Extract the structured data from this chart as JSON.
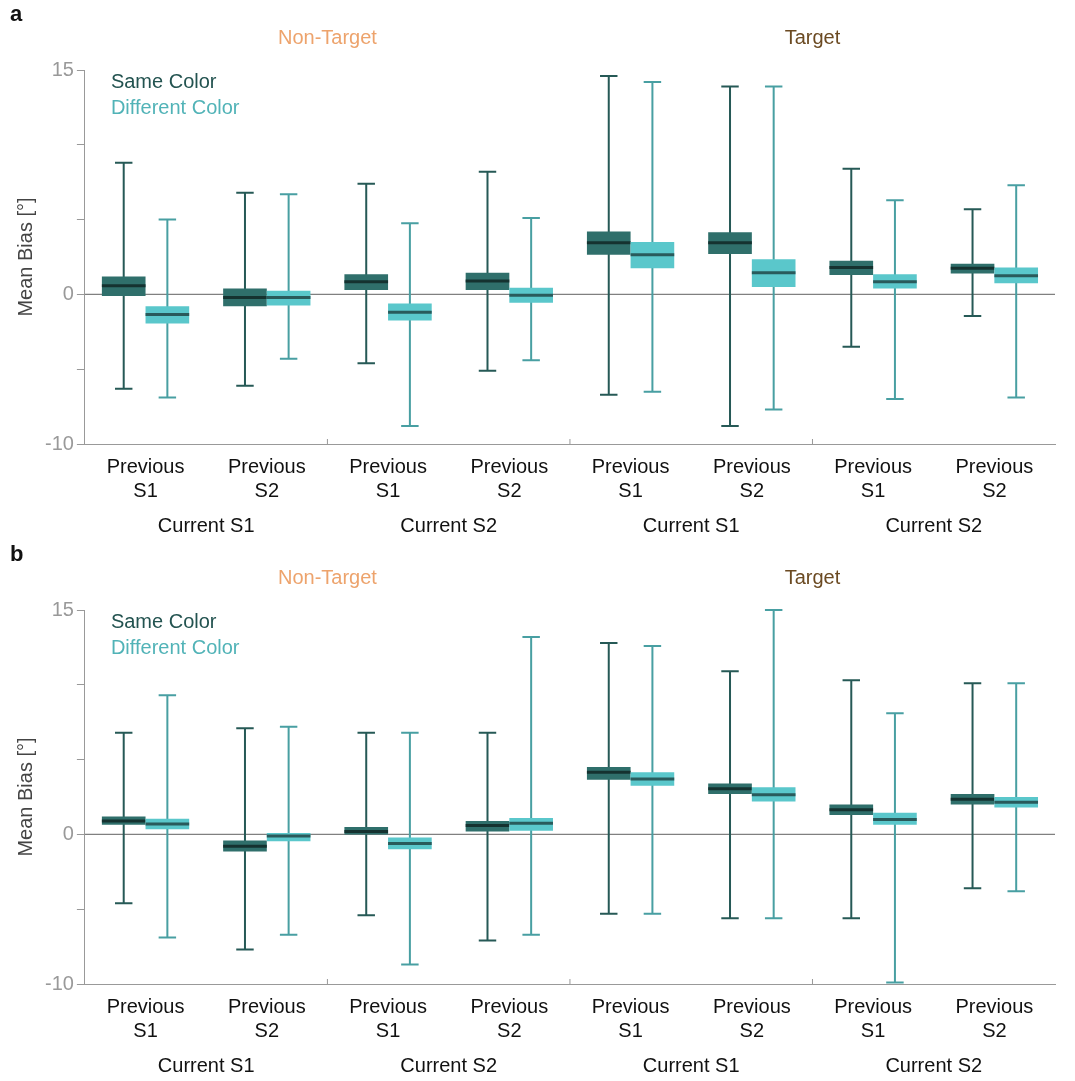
{
  "chart_data": [
    {
      "type": "box",
      "title": "a",
      "ylabel": "Mean Bias [°]",
      "categories": [
        "Previous S1",
        "Previous S2",
        "Previous S1",
        "Previous S2",
        "Previous S1",
        "Previous S2",
        "Previous S1",
        "Previous S2"
      ],
      "annotations": [
        "Non-Target",
        "Target",
        "Current S1",
        "Current S2",
        "Current S1",
        "Current S2"
      ],
      "ylim": [
        -10,
        15
      ],
      "yticks": [
        -10,
        {
          "value": -5,
          "label": null
        },
        0,
        {
          "value": 5,
          "label": null
        },
        {
          "value": 10,
          "label": null
        },
        15
      ],
      "grid": false,
      "legend": "top left",
      "ref_lines": [
        {
          "axis": "y",
          "value": 0,
          "color": "#808080"
        }
      ],
      "series": [
        {
          "name": "Same Color",
          "color": "#2f6f6b",
          "boxes": [
            {
              "low": -6.3,
              "q1": -0.1,
              "median": 0.57,
              "q3": 1.2,
              "high": 8.8
            },
            {
              "low": -6.1,
              "q1": -0.8,
              "median": -0.2,
              "q3": 0.4,
              "high": 6.8
            },
            {
              "low": -4.6,
              "q1": 0.3,
              "median": 0.85,
              "q3": 1.35,
              "high": 7.4
            },
            {
              "low": -5.1,
              "q1": 0.3,
              "median": 0.9,
              "q3": 1.45,
              "high": 8.2
            },
            {
              "low": -6.7,
              "q1": 2.65,
              "median": 3.45,
              "q3": 4.2,
              "high": 14.6
            },
            {
              "low": -8.8,
              "q1": 2.7,
              "median": 3.45,
              "q3": 4.15,
              "high": 13.9
            },
            {
              "low": -3.5,
              "q1": 1.3,
              "median": 1.8,
              "q3": 2.25,
              "high": 8.4
            },
            {
              "low": -1.45,
              "q1": 1.4,
              "median": 1.75,
              "q3": 2.05,
              "high": 5.7
            }
          ]
        },
        {
          "name": "Different Color",
          "color": "#5ac7cb",
          "boxes": [
            {
              "low": -6.9,
              "q1": -1.95,
              "median": -1.35,
              "q3": -0.8,
              "high": 5.0
            },
            {
              "low": -4.3,
              "q1": -0.75,
              "median": -0.2,
              "q3": 0.25,
              "high": 6.7
            },
            {
              "low": -8.8,
              "q1": -1.75,
              "median": -1.2,
              "q3": -0.6,
              "high": 4.75
            },
            {
              "low": -4.4,
              "q1": -0.55,
              "median": -0.05,
              "q3": 0.45,
              "high": 5.1
            },
            {
              "low": -6.5,
              "q1": 1.75,
              "median": 2.65,
              "q3": 3.5,
              "high": 14.2
            },
            {
              "low": -7.7,
              "q1": 0.5,
              "median": 1.45,
              "q3": 2.35,
              "high": 13.9
            },
            {
              "low": -7.0,
              "q1": 0.4,
              "median": 0.85,
              "q3": 1.35,
              "high": 6.3
            },
            {
              "low": -6.9,
              "q1": 0.75,
              "median": 1.25,
              "q3": 1.8,
              "high": 7.3
            }
          ]
        }
      ]
    },
    {
      "type": "box",
      "title": "b",
      "ylabel": "Mean Bias [°]",
      "categories": [
        "Previous S1",
        "Previous S2",
        "Previous S1",
        "Previous S2",
        "Previous S1",
        "Previous S2",
        "Previous S1",
        "Previous S2"
      ],
      "annotations": [
        "Non-Target",
        "Target",
        "Current S1",
        "Current S2",
        "Current S1",
        "Current S2"
      ],
      "ylim": [
        -10,
        15
      ],
      "yticks": [
        -10,
        {
          "value": -5,
          "label": null
        },
        0,
        {
          "value": 5,
          "label": null
        },
        {
          "value": 10,
          "label": null
        },
        15
      ],
      "grid": false,
      "legend": "top left",
      "ref_lines": [
        {
          "axis": "y",
          "value": 0,
          "color": "#808080"
        }
      ],
      "series": [
        {
          "name": "Same Color",
          "color": "#2f6f6b",
          "boxes": [
            {
              "low": -4.6,
              "q1": 0.65,
              "median": 0.9,
              "q3": 1.2,
              "high": 6.8
            },
            {
              "low": -7.7,
              "q1": -1.15,
              "median": -0.8,
              "q3": -0.4,
              "high": 7.1
            },
            {
              "low": -5.4,
              "q1": 0,
              "median": 0.2,
              "q3": 0.5,
              "high": 6.8
            },
            {
              "low": -7.1,
              "q1": 0.2,
              "median": 0.6,
              "q3": 0.9,
              "high": 6.8
            },
            {
              "low": -5.3,
              "q1": 3.65,
              "median": 4.15,
              "q3": 4.5,
              "high": 12.8
            },
            {
              "low": -5.6,
              "q1": 2.7,
              "median": 3.05,
              "q3": 3.4,
              "high": 10.9
            },
            {
              "low": -5.6,
              "q1": 1.3,
              "median": 1.65,
              "q3": 2.0,
              "high": 10.3
            },
            {
              "low": -3.6,
              "q1": 2.0,
              "median": 2.35,
              "q3": 2.7,
              "high": 10.1
            }
          ]
        },
        {
          "name": "Different Color",
          "color": "#5ac7cb",
          "boxes": [
            {
              "low": -6.9,
              "q1": 0.35,
              "median": 0.7,
              "q3": 1.05,
              "high": 9.3
            },
            {
              "low": -6.7,
              "q1": -0.45,
              "median": -0.1,
              "q3": 0.1,
              "high": 7.2
            },
            {
              "low": -8.7,
              "q1": -1.0,
              "median": -0.6,
              "q3": -0.2,
              "high": 6.8
            },
            {
              "low": -6.7,
              "q1": 0.25,
              "median": 0.75,
              "q3": 1.1,
              "high": 13.2
            },
            {
              "low": -5.3,
              "q1": 3.25,
              "median": 3.7,
              "q3": 4.15,
              "high": 12.6
            },
            {
              "low": -5.6,
              "q1": 2.2,
              "median": 2.65,
              "q3": 3.15,
              "high": 15
            },
            {
              "low": -9.9,
              "q1": 0.65,
              "median": 1.0,
              "q3": 1.45,
              "high": 8.1
            },
            {
              "low": -3.8,
              "q1": 1.8,
              "median": 2.15,
              "q3": 2.5,
              "high": 10.1
            }
          ]
        }
      ]
    }
  ]
}
